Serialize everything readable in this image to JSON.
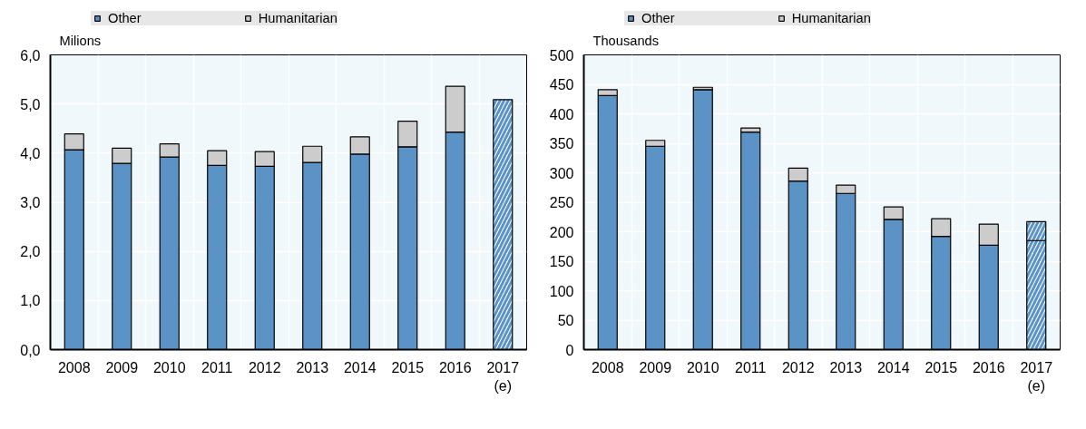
{
  "chart_data": [
    {
      "type": "bar",
      "stacked": true,
      "ylabel": "Milions",
      "legend": "top",
      "grid": true,
      "categories": [
        "2008",
        "2009",
        "2010",
        "2011",
        "2012",
        "2013",
        "2014",
        "2015",
        "2016",
        "2017\n(e)"
      ],
      "series": [
        {
          "name": "Other",
          "color": "#5b93c7",
          "values": [
            4.07,
            3.79,
            3.92,
            3.75,
            3.73,
            3.81,
            3.98,
            4.13,
            4.43,
            5.09
          ],
          "colors": [
            "#5b93c7",
            "#5b93c7",
            "#5b93c7",
            "#5b93c7",
            "#5b93c7",
            "#5b93c7",
            "#5b93c7",
            "#5b93c7",
            "#5b93c7",
            "#ffffff"
          ]
        },
        {
          "name": "Humanitarian",
          "color": "#cccccc",
          "values": [
            0.32,
            0.31,
            0.27,
            0.3,
            0.3,
            0.33,
            0.35,
            0.52,
            0.93,
            null
          ]
        }
      ],
      "ylim": [
        0,
        6
      ],
      "yticks": [
        {
          "value": 0,
          "label": "0,0"
        },
        {
          "value": 1,
          "label": "1,0"
        },
        {
          "value": 2,
          "label": "2,0"
        },
        {
          "value": 3,
          "label": "3,0"
        },
        {
          "value": 4,
          "label": "4,0"
        },
        {
          "value": 5,
          "label": "5,0"
        },
        {
          "value": 6,
          "label": "6,0"
        }
      ]
    },
    {
      "type": "bar",
      "stacked": true,
      "ylabel": "Thousands",
      "legend": "top",
      "grid": true,
      "categories": [
        "2008",
        "2009",
        "2010",
        "2011",
        "2012",
        "2013",
        "2014",
        "2015",
        "2016",
        "2017\n(e)"
      ],
      "series": [
        {
          "name": "Other",
          "color": "#5b93c7",
          "values": [
            431,
            345,
            441,
            369,
            286,
            265,
            221,
            192,
            177,
            185
          ],
          "colors": [
            "#5b93c7",
            "#5b93c7",
            "#5b93c7",
            "#5b93c7",
            "#5b93c7",
            "#5b93c7",
            "#5b93c7",
            "#5b93c7",
            "#5b93c7",
            "#ffffff"
          ]
        },
        {
          "name": "Humanitarian",
          "color": "#cccccc",
          "values": [
            10,
            10,
            4,
            7,
            22,
            14,
            21,
            30,
            36,
            32
          ],
          "colors": [
            "#cccccc",
            "#cccccc",
            "#cccccc",
            "#cccccc",
            "#cccccc",
            "#cccccc",
            "#cccccc",
            "#cccccc",
            "#cccccc",
            "#ffffff"
          ]
        }
      ],
      "ylim": [
        0,
        500
      ],
      "yticks": [
        0,
        50,
        100,
        150,
        200,
        250,
        300,
        350,
        400,
        450,
        500
      ]
    }
  ]
}
